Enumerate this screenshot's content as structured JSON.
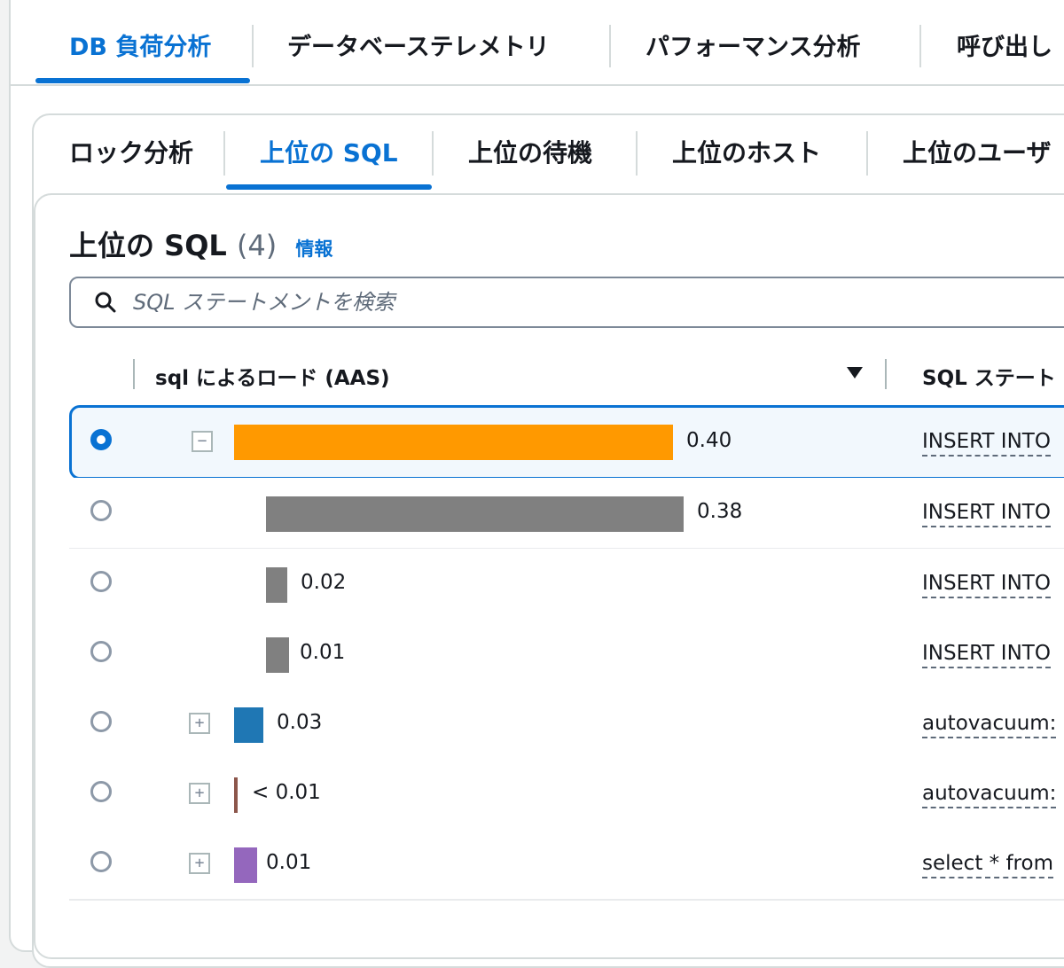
{
  "tabs_primary": [
    {
      "label": "DB 負荷分析",
      "active": true
    },
    {
      "label": "データベーステレメトリ",
      "active": false
    },
    {
      "label": "パフォーマンス分析",
      "active": false
    },
    {
      "label": "呼び出し",
      "active": false
    }
  ],
  "tabs_secondary": [
    {
      "label": "ロック分析",
      "active": false
    },
    {
      "label": "上位の SQL",
      "active": true
    },
    {
      "label": "上位の待機",
      "active": false
    },
    {
      "label": "上位のホスト",
      "active": false
    },
    {
      "label": "上位のユーザ",
      "active": false
    }
  ],
  "panel": {
    "title": "上位の SQL",
    "count": "(4)",
    "info_link": "情報"
  },
  "search": {
    "placeholder": "SQL ステートメントを検索",
    "value": ""
  },
  "table": {
    "columns": [
      "sql によるロード (AAS)",
      "SQL ステート"
    ],
    "sort": "descending",
    "rows": [
      {
        "selected": true,
        "expander": "collapse",
        "load": 0.4,
        "value_label": "0.40",
        "color": "#ff9900",
        "sql": "INSERT INTO"
      },
      {
        "selected": false,
        "expander": "none",
        "load": 0.38,
        "value_label": "0.38",
        "color": "#808080",
        "sql": "INSERT INTO"
      },
      {
        "selected": false,
        "expander": "none",
        "load": 0.02,
        "value_label": "0.02",
        "color": "#808080",
        "sql": "INSERT INTO"
      },
      {
        "selected": false,
        "expander": "none",
        "load": 0.01,
        "value_label": "0.01",
        "color": "#808080",
        "sql": "INSERT INTO"
      },
      {
        "selected": false,
        "expander": "expand",
        "load": 0.03,
        "value_label": "0.03",
        "color": "#1f77b4",
        "sql": "autovacuum:"
      },
      {
        "selected": false,
        "expander": "expand",
        "load": 0.005,
        "value_label": "< 0.01",
        "color": "#8c564b",
        "sql": "autovacuum:"
      },
      {
        "selected": false,
        "expander": "expand",
        "load": 0.01,
        "value_label": "0.01",
        "color": "#9467bd",
        "sql": "select * from"
      }
    ]
  },
  "colors": {
    "accent": "#0972d3",
    "border": "#d5dbdb"
  }
}
